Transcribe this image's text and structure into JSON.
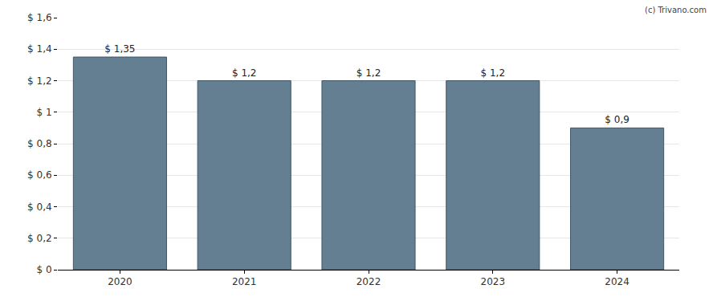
{
  "chart_data": {
    "type": "bar",
    "categories": [
      "2020",
      "2021",
      "2022",
      "2023",
      "2024"
    ],
    "values": [
      1.35,
      1.2,
      1.2,
      1.2,
      0.9
    ],
    "value_labels": [
      "$ 1,35",
      "$ 1,2",
      "$ 1,2",
      "$ 1,2",
      "$ 0,9"
    ],
    "data_labels": true,
    "color": "#657f92",
    "ylim": [
      0,
      1.6
    ],
    "yticks": [
      {
        "value": 0,
        "label": "$ 0"
      },
      {
        "value": 0.2,
        "label": "$ 0,2"
      },
      {
        "value": 0.4,
        "label": "$ 0,4"
      },
      {
        "value": 0.6,
        "label": "$ 0,6"
      },
      {
        "value": 0.8,
        "label": "$ 0,8"
      },
      {
        "value": 1,
        "label": "$ 1"
      },
      {
        "value": 1.2,
        "label": "$ 1,2"
      },
      {
        "value": 1.4,
        "label": "$ 1,4"
      },
      {
        "value": 1.6,
        "label": "$ 1,6"
      }
    ],
    "grid": true,
    "source": "(c) Trivano.com"
  }
}
